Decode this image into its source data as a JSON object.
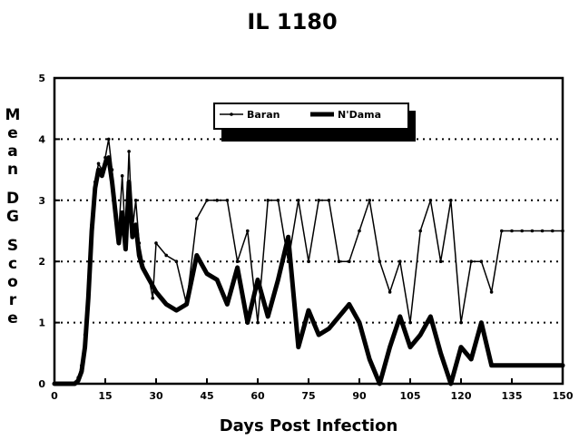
{
  "chart_data": {
    "type": "line",
    "title": "IL 1180",
    "xlabel": "Days Post Infection",
    "ylabel": "Mean DG Score",
    "xlim": [
      0,
      150
    ],
    "ylim": [
      0,
      5
    ],
    "xticks": [
      0,
      15,
      30,
      45,
      60,
      75,
      90,
      105,
      120,
      135,
      150
    ],
    "yticks": [
      0,
      1,
      2,
      3,
      4,
      5
    ],
    "grid": "horizontal-dotted",
    "legend_position": "top-center",
    "series": [
      {
        "name": "Baran",
        "style": "thin-marker",
        "x": [
          0,
          6,
          7,
          8,
          9,
          10,
          11,
          12,
          13,
          14,
          15,
          16,
          17,
          18,
          19,
          20,
          21,
          22,
          23,
          24,
          25,
          26,
          27,
          28,
          29,
          30,
          33,
          36,
          39,
          42,
          45,
          48,
          51,
          54,
          57,
          60,
          63,
          66,
          69,
          72,
          75,
          78,
          81,
          84,
          87,
          90,
          93,
          96,
          99,
          102,
          105,
          108,
          111,
          114,
          117,
          120,
          123,
          126,
          129,
          132,
          135,
          138,
          141,
          144,
          147,
          150
        ],
        "y": [
          0,
          0,
          0.1,
          0.3,
          0.8,
          1.6,
          2.6,
          3.3,
          3.6,
          3.5,
          3.7,
          4.0,
          3.5,
          2.8,
          2.5,
          3.4,
          2.3,
          3.8,
          2.5,
          3.0,
          2.3,
          2.0,
          1.8,
          1.7,
          1.4,
          2.3,
          2.1,
          2.0,
          1.3,
          2.7,
          3.0,
          3.0,
          3.0,
          2.0,
          2.5,
          1.0,
          3.0,
          3.0,
          2.0,
          3.0,
          2.0,
          3.0,
          3.0,
          2.0,
          2.0,
          2.5,
          3.0,
          2.0,
          1.5,
          2.0,
          1.0,
          2.5,
          3.0,
          2.0,
          3.0,
          1.0,
          2.0,
          2.0,
          1.5,
          2.5,
          2.5,
          2.5,
          2.5,
          2.5,
          2.5,
          2.5
        ]
      },
      {
        "name": "N'Dama",
        "style": "thick",
        "x": [
          0,
          6,
          7,
          8,
          9,
          10,
          11,
          12,
          13,
          14,
          15,
          16,
          17,
          18,
          19,
          20,
          21,
          22,
          23,
          24,
          25,
          26,
          27,
          28,
          29,
          30,
          33,
          36,
          39,
          42,
          45,
          48,
          51,
          54,
          57,
          60,
          63,
          66,
          69,
          72,
          75,
          78,
          81,
          84,
          87,
          90,
          93,
          96,
          99,
          102,
          105,
          108,
          111,
          114,
          117,
          120,
          123,
          126,
          129,
          132,
          135,
          138,
          141,
          144,
          147,
          150
        ],
        "y": [
          0,
          0,
          0.05,
          0.2,
          0.6,
          1.4,
          2.5,
          3.2,
          3.5,
          3.4,
          3.6,
          3.7,
          3.3,
          2.8,
          2.3,
          2.8,
          2.2,
          3.3,
          2.4,
          2.6,
          2.1,
          1.9,
          1.8,
          1.7,
          1.6,
          1.5,
          1.3,
          1.2,
          1.3,
          2.1,
          1.8,
          1.7,
          1.3,
          1.9,
          1.0,
          1.7,
          1.1,
          1.7,
          2.4,
          0.6,
          1.2,
          0.8,
          0.9,
          1.1,
          1.3,
          1.0,
          0.4,
          0.0,
          0.6,
          1.1,
          0.6,
          0.8,
          1.1,
          0.5,
          0.0,
          0.6,
          0.4,
          1.0,
          0.3,
          0.3,
          0.3,
          0.3,
          0.3,
          0.3,
          0.3,
          0.3
        ]
      }
    ]
  }
}
